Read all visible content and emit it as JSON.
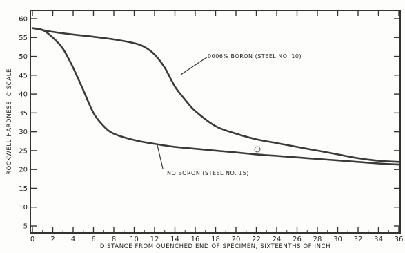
{
  "chart_data": {
    "type": "line",
    "title": "",
    "xlabel": "DISTANCE FROM QUENCHED END OF SPECIMEN, SIXTEENTHS OF INCH",
    "ylabel": "ROCKWELL HARDNESS, C SCALE",
    "xlim": [
      0,
      36
    ],
    "ylim": [
      5,
      60
    ],
    "x_ticks": [
      0,
      2,
      4,
      6,
      8,
      10,
      12,
      14,
      16,
      18,
      20,
      22,
      24,
      26,
      28,
      30,
      32,
      34,
      36
    ],
    "x_tick_labels": [
      "0",
      "2",
      "4",
      "6",
      "8",
      "10",
      "12",
      "14",
      "16",
      "18",
      "20",
      "22",
      "24",
      "26",
      "28",
      "30",
      "32",
      "34",
      "36"
    ],
    "y_ticks": [
      5,
      10,
      15,
      20,
      25,
      30,
      35,
      40,
      45,
      50,
      55,
      60
    ],
    "y_tick_labels": [
      "5",
      "10",
      "15",
      "20",
      "25",
      "30",
      "35",
      "40",
      "45",
      "50",
      "55",
      "60"
    ],
    "grid": false,
    "series": [
      {
        "name": ".0006% BORON (STEEL NO. 10)",
        "x": [
          0,
          2,
          4,
          6,
          8,
          10,
          11,
          12,
          13,
          14,
          15,
          16,
          18,
          20,
          22,
          24,
          26,
          28,
          30,
          32,
          34,
          36
        ],
        "y": [
          57.5,
          56.5,
          55.8,
          55.2,
          54.5,
          53.5,
          52.5,
          50.5,
          47,
          42,
          38.5,
          35.5,
          31.5,
          29.5,
          28,
          27,
          26,
          25,
          24,
          23,
          22.3,
          22
        ]
      },
      {
        "name": "NO BORON (STEEL NO. 15)",
        "x": [
          0,
          1,
          2,
          3,
          4,
          5,
          6,
          7,
          8,
          10,
          12,
          14,
          16,
          18,
          20,
          22,
          24,
          26,
          28,
          30,
          32,
          34,
          36
        ],
        "y": [
          57.5,
          57,
          55,
          52,
          47,
          41,
          35,
          31.5,
          29.5,
          27.8,
          26.8,
          26,
          25.5,
          25,
          24.5,
          24,
          23.6,
          23.2,
          22.8,
          22.4,
          22,
          21.6,
          21.3
        ]
      }
    ],
    "annotations": [
      {
        "text": ".0006% BORON (STEEL NO. 10)",
        "series": 0
      },
      {
        "text": "NO BORON (STEEL NO. 15)",
        "series": 1
      }
    ],
    "line_color": "#3a3a3a"
  }
}
